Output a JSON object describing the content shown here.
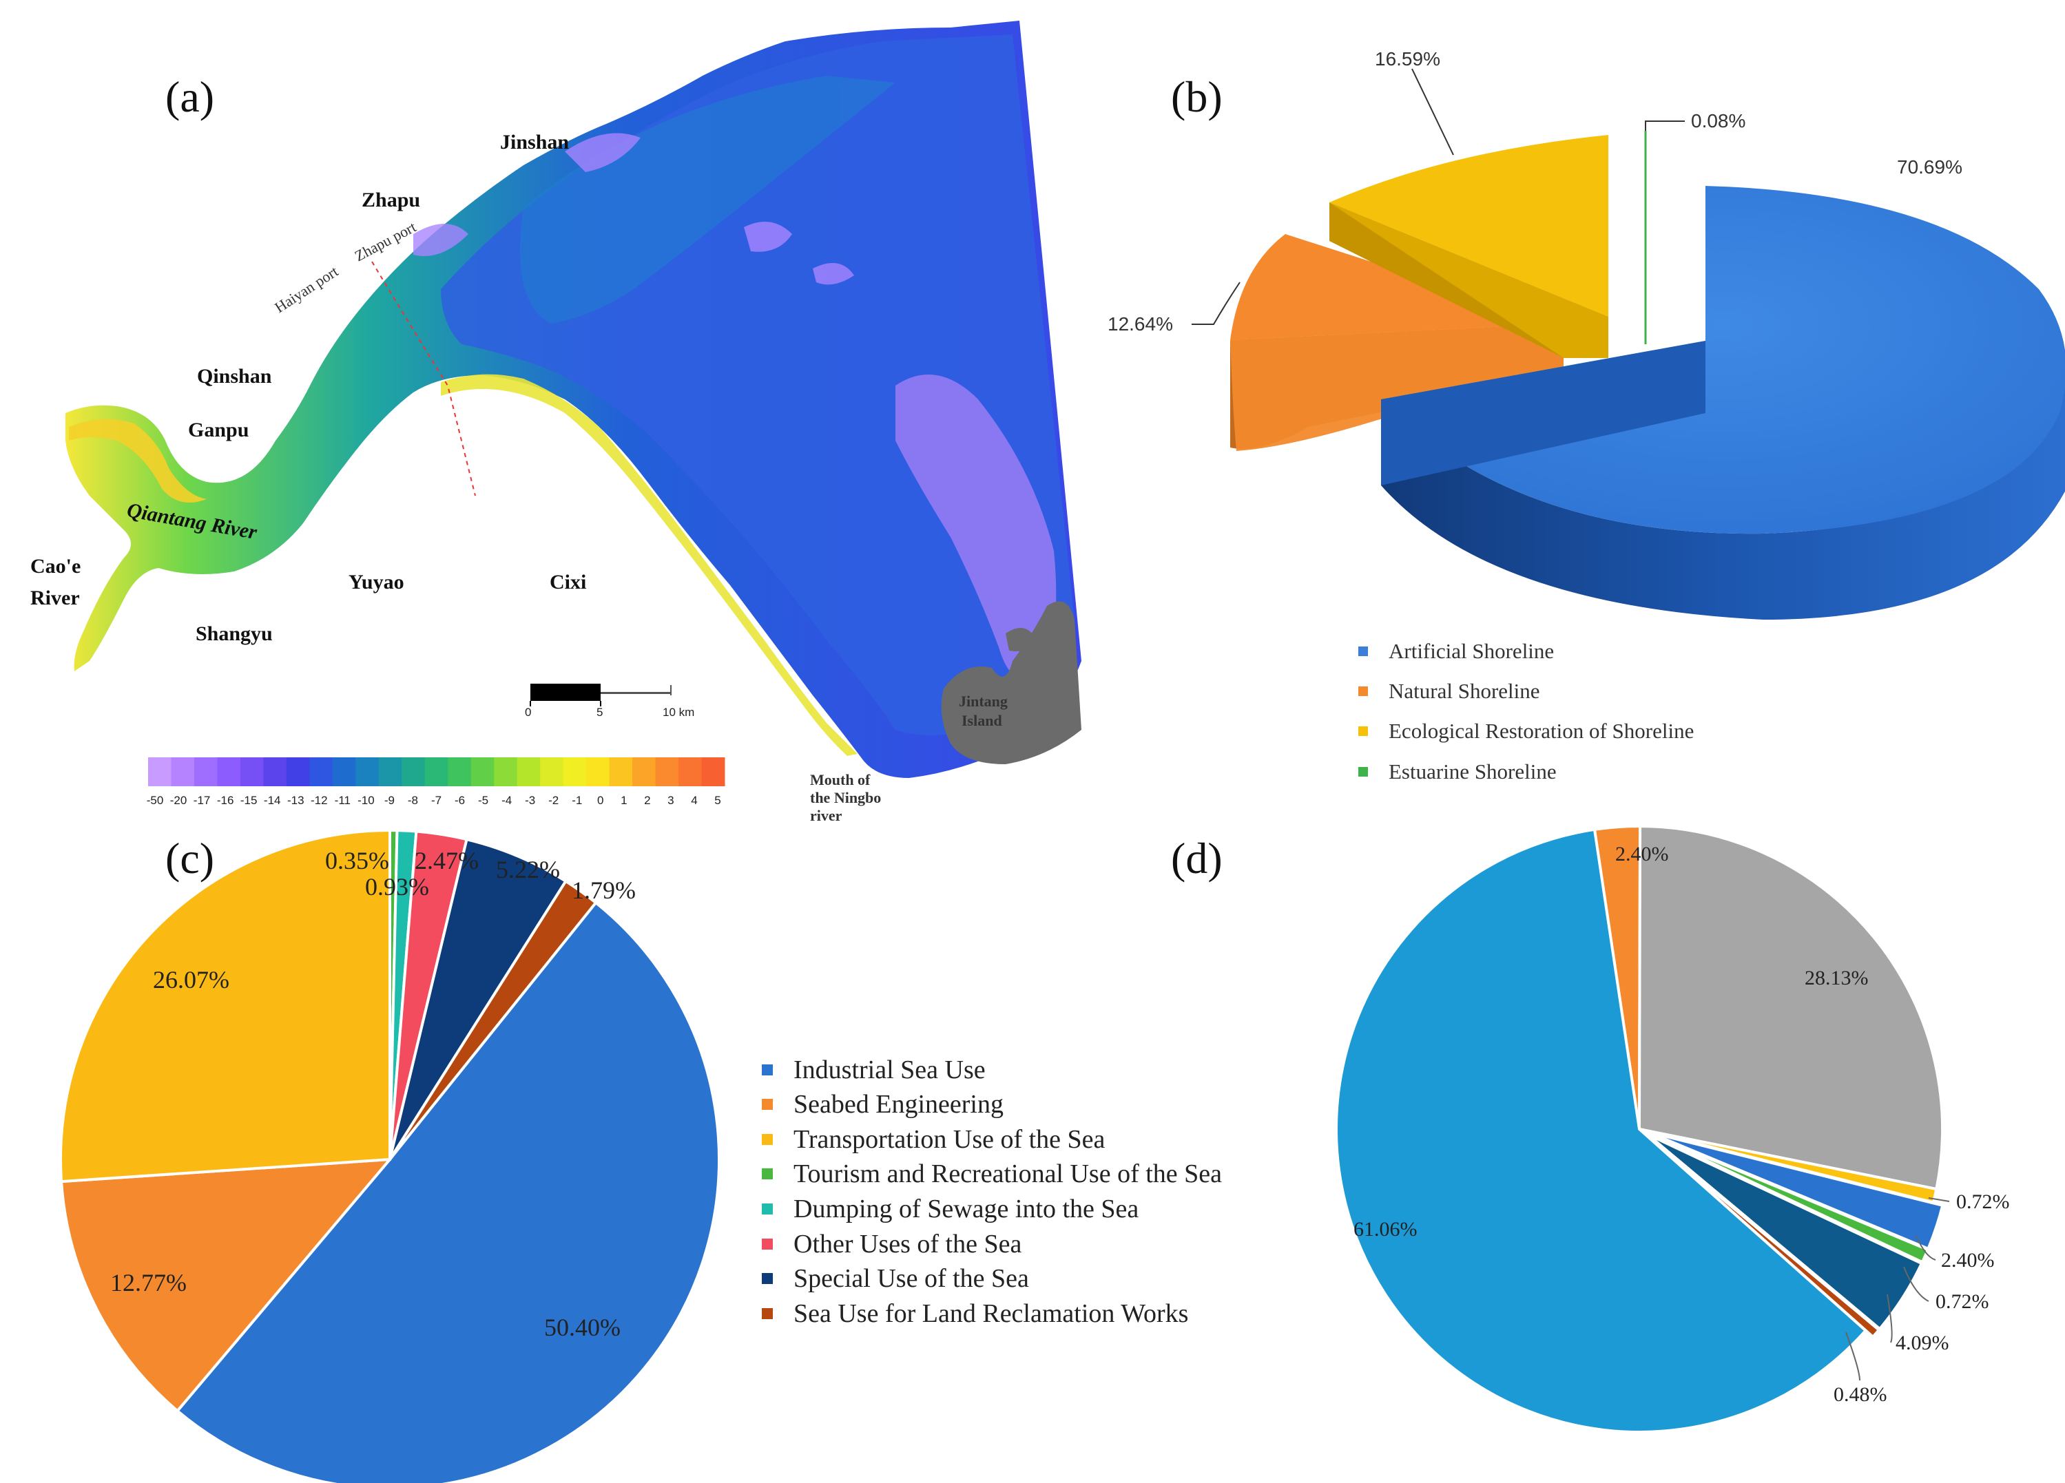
{
  "panel_labels": {
    "a": "(a)",
    "b": "(b)",
    "c": "(c)",
    "d": "(d)"
  },
  "map": {
    "places": {
      "jinshan": "Jinshan",
      "zhapu": "Zhapu",
      "zhapu_port": "Zhapu port",
      "haiyan_port": "Haiyan port",
      "qinshan": "Qinshan",
      "ganpu": "Ganpu",
      "qiantang": "Qiantang River",
      "caoe_1": "Cao'e",
      "caoe_2": "River",
      "shangyu": "Shangyu",
      "yuyao": "Yuyao",
      "cixi": "Cixi",
      "jintang_1": "Jintang",
      "jintang_2": "Island",
      "mouth_1": "Mouth of",
      "mouth_2": "the Ningbo",
      "mouth_3": "river"
    },
    "scalebar": {
      "t0": "0",
      "t1": "5",
      "t2": "10 km"
    },
    "colorbar": {
      "labels": [
        "-50",
        "-20",
        "-17",
        "-16",
        "-15",
        "-14",
        "-13",
        "-12",
        "-11",
        "-10",
        "-9",
        "-8",
        "-7",
        "-6",
        "-5",
        "-4",
        "-3",
        "-2",
        "-1",
        "0",
        "1",
        "2",
        "3",
        "4",
        "5"
      ],
      "colors": [
        "#c79bff",
        "#b583ff",
        "#a06eff",
        "#8c5cff",
        "#7650f5",
        "#5c44ec",
        "#4040e6",
        "#2f56e0",
        "#1f6ccf",
        "#1a82bf",
        "#1a96a8",
        "#20a88e",
        "#2bb876",
        "#3ec35e",
        "#62cf48",
        "#8cdb36",
        "#b5e52a",
        "#dceb25",
        "#f2ee24",
        "#fbe31f",
        "#fcc421",
        "#fca428",
        "#fb8a2e",
        "#fa7431",
        "#f76030"
      ]
    }
  },
  "chart_data": [
    {
      "panel": "b",
      "type": "pie",
      "style": "3d-exploded",
      "title": "",
      "series": [
        {
          "name": "Artificial Shoreline",
          "value": 70.69,
          "label": "70.69%",
          "color": "#3b7fd9"
        },
        {
          "name": "Natural Shoreline",
          "value": 12.64,
          "label": "12.64%",
          "color": "#f5892e"
        },
        {
          "name": "Ecological Restoration of Shoreline",
          "value": 16.59,
          "label": "16.59%",
          "color": "#f6c10a"
        },
        {
          "name": "Estuarine Shoreline",
          "value": 0.08,
          "label": "0.08%",
          "color": "#3db34a"
        }
      ],
      "legend_position": "bottom"
    },
    {
      "panel": "c",
      "type": "pie",
      "title": "",
      "series": [
        {
          "name": "Industrial Sea Use",
          "value": 50.4,
          "label": "50.40%",
          "color": "#2a74d0"
        },
        {
          "name": "Seabed Engineering",
          "value": 12.77,
          "label": "12.77%",
          "color": "#f5892e"
        },
        {
          "name": "Transportation Use of the Sea",
          "value": 26.07,
          "label": "26.07%",
          "color": "#fbb913"
        },
        {
          "name": "Tourism and Recreational Use of the Sea",
          "value": 0.35,
          "label": "0.35%",
          "color": "#49b83e"
        },
        {
          "name": "Dumping of Sewage into the Sea",
          "value": 0.93,
          "label": "0.93%",
          "color": "#1dbcab"
        },
        {
          "name": "Other Uses of the Sea",
          "value": 2.47,
          "label": "2.47%",
          "color": "#f24c5e"
        },
        {
          "name": "Special Use of the Sea",
          "value": 5.22,
          "label": "5.22%",
          "color": "#0e3b7a"
        },
        {
          "name": "Sea Use for Land Reclamation Works",
          "value": 1.79,
          "label": "1.79%",
          "color": "#b5470f"
        }
      ],
      "legend_position": "right"
    },
    {
      "panel": "d",
      "type": "pie",
      "title": "",
      "series": [
        {
          "name": "",
          "value": 2.4,
          "label": "2.40%",
          "color": "#f5892e"
        },
        {
          "name": "",
          "value": 28.13,
          "label": "28.13%",
          "color": "#a6a6a6"
        },
        {
          "name": "",
          "value": 0.72,
          "label": "0.72%",
          "color": "#fbc310"
        },
        {
          "name": "",
          "value": 2.4,
          "label": "2.40%",
          "color": "#2a74d0"
        },
        {
          "name": "",
          "value": 0.72,
          "label": "0.72%",
          "color": "#49b83e"
        },
        {
          "name": "",
          "value": 4.09,
          "label": "4.09%",
          "color": "#0e5a8c"
        },
        {
          "name": "",
          "value": 0.48,
          "label": "0.48%",
          "color": "#b5470f"
        },
        {
          "name": "",
          "value": 61.06,
          "label": "61.06%",
          "color": "#1b9ad6"
        }
      ],
      "legend_position": "none"
    }
  ]
}
